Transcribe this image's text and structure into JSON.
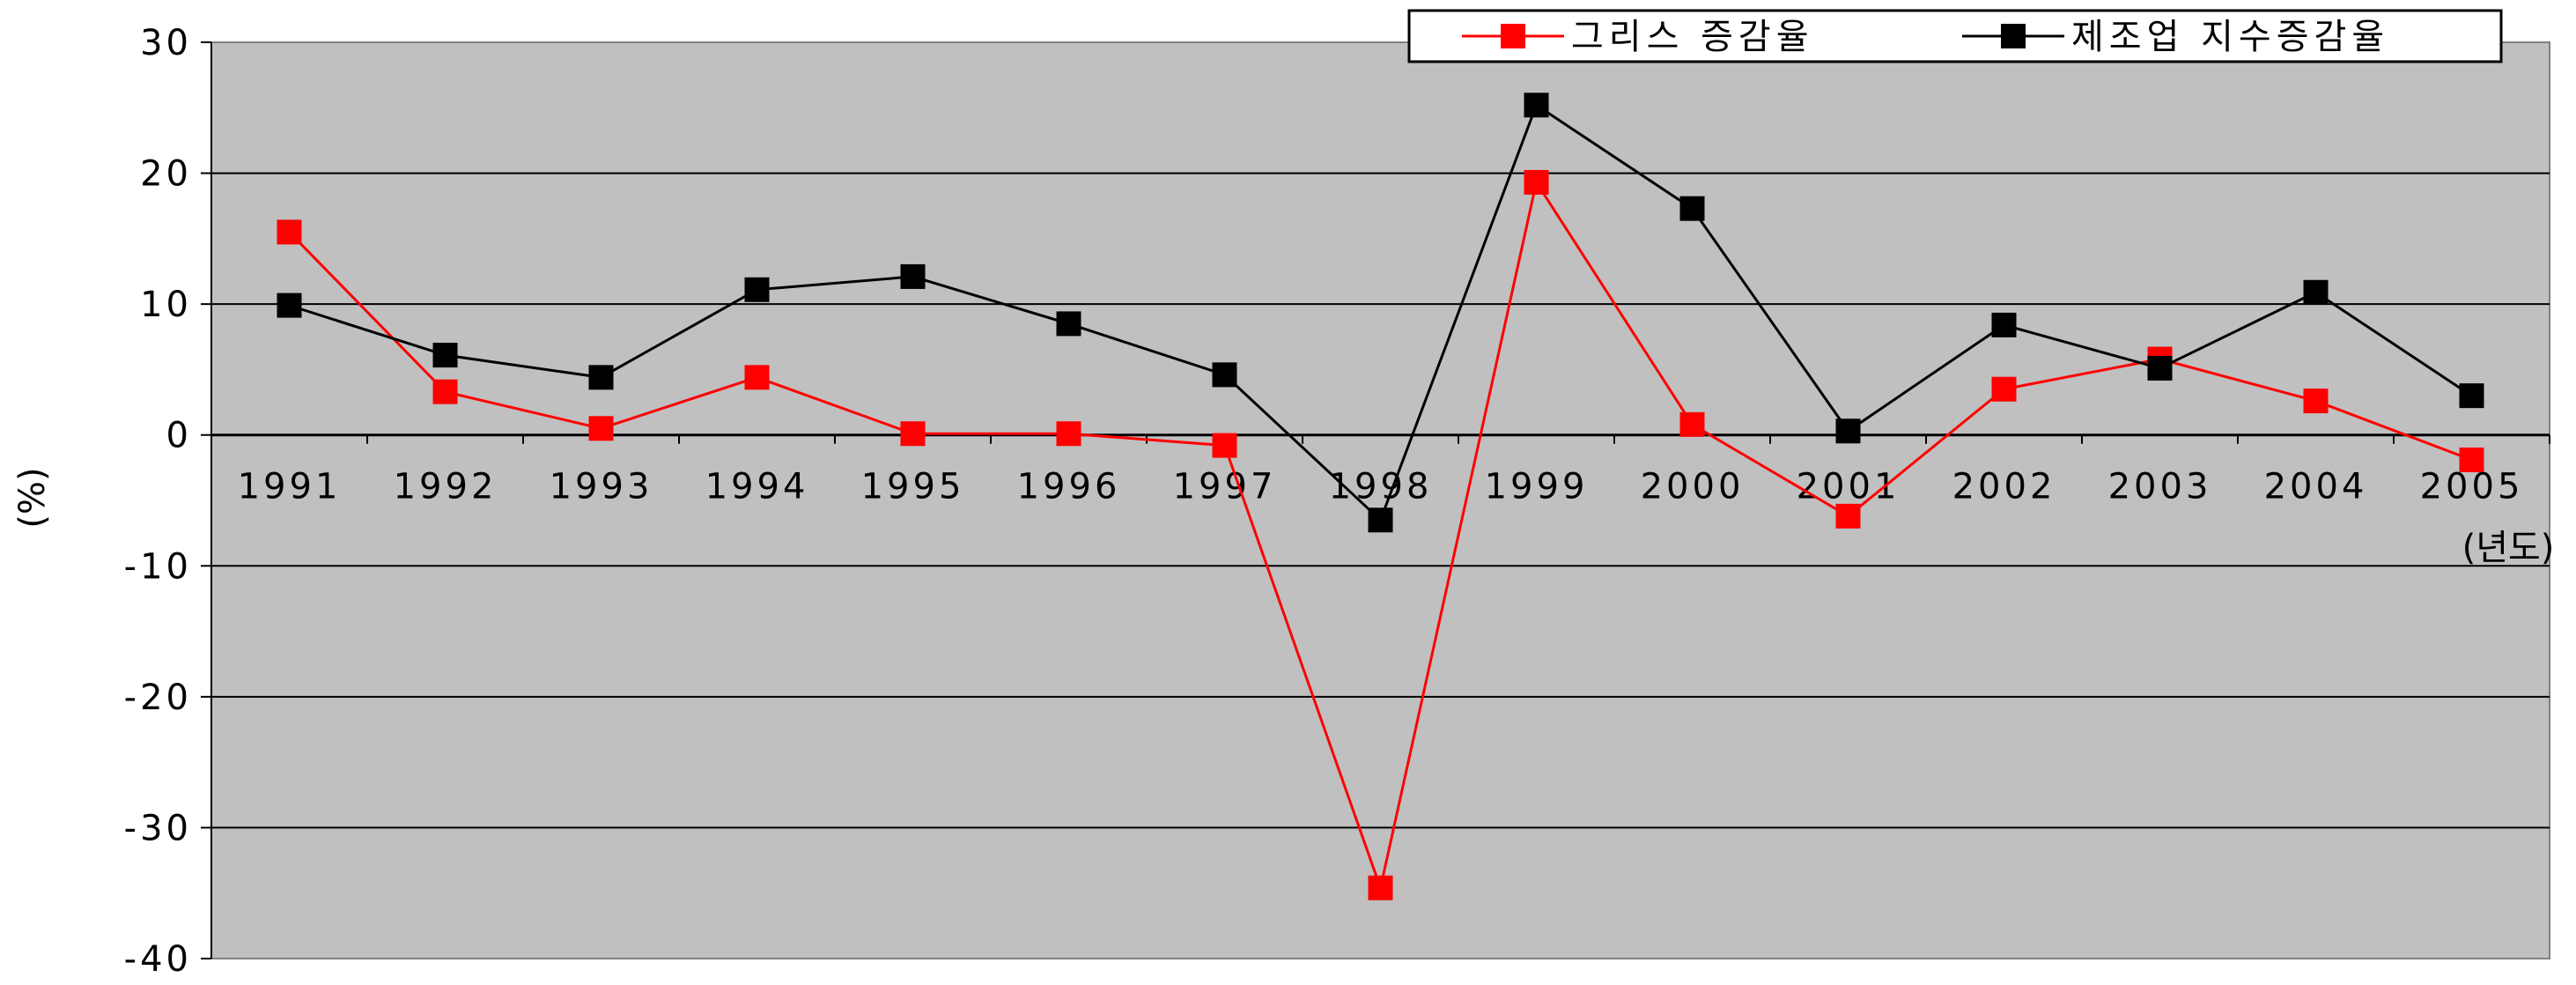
{
  "chart_data": {
    "type": "line",
    "categories": [
      "1991",
      "1992",
      "1993",
      "1994",
      "1995",
      "1996",
      "1997",
      "1998",
      "1999",
      "2000",
      "2001",
      "2002",
      "2003",
      "2004",
      "2005"
    ],
    "series": [
      {
        "name": "그리스 증감율",
        "color": "#ff0000",
        "values": [
          15.5,
          3.3,
          0.5,
          4.4,
          0.1,
          0.1,
          -0.8,
          -34.6,
          19.3,
          0.8,
          -6.2,
          3.5,
          5.8,
          2.6,
          -1.9
        ]
      },
      {
        "name": "제조업 지수증감율",
        "color": "#000000",
        "values": [
          9.9,
          6.1,
          4.4,
          11.1,
          12.1,
          8.5,
          4.6,
          -6.5,
          25.2,
          17.3,
          0.3,
          8.4,
          5.1,
          10.9,
          3.0
        ]
      }
    ],
    "ylim": [
      -40,
      30
    ],
    "yticks": [
      "30",
      "20",
      "10",
      "0",
      "-10",
      "-20",
      "-30",
      "-40"
    ],
    "ylabel": "(%)",
    "xlabel": "(년도)",
    "grid": true,
    "legend_position": "top-right",
    "plot_background": "#c0c0c0"
  }
}
